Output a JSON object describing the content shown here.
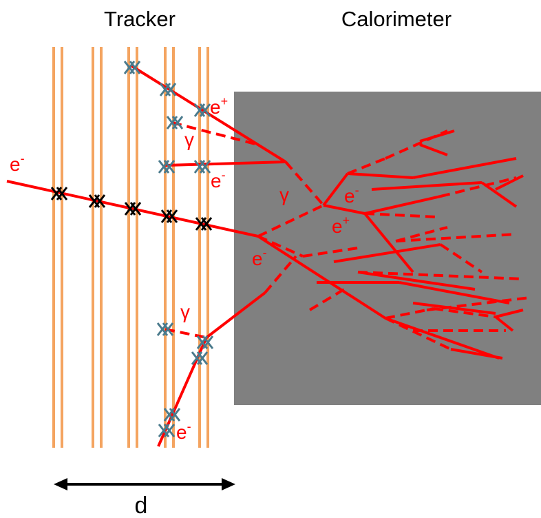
{
  "headings": {
    "tracker": "Tracker",
    "calorimeter": "Calorimeter"
  },
  "particle_labels": [
    {
      "text": "e",
      "sup": "-"
    },
    {
      "text": "e",
      "sup": "+"
    },
    {
      "text": "γ"
    },
    {
      "text": "e",
      "sup": "-"
    },
    {
      "text": "γ"
    },
    {
      "text": "e",
      "sup": "-"
    },
    {
      "text": "e",
      "sup": "+"
    },
    {
      "text": "e",
      "sup": "-"
    },
    {
      "text": "γ"
    },
    {
      "text": "e",
      "sup": "-"
    }
  ],
  "distance_label": "d"
}
